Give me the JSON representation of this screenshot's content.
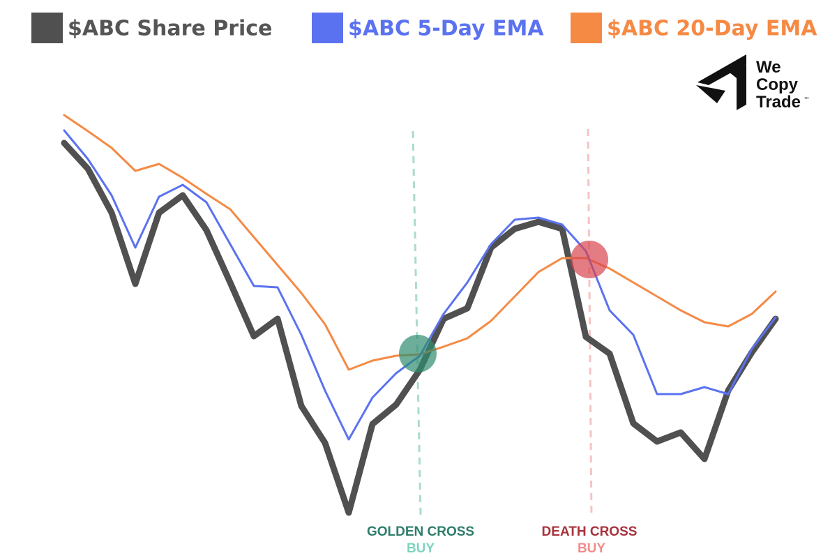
{
  "chart_data": {
    "type": "line",
    "categories": [
      null,
      null,
      null,
      null,
      null,
      null,
      null,
      null,
      null,
      null,
      null,
      null,
      null,
      null,
      null,
      null,
      null,
      null,
      null,
      null,
      null,
      null,
      null,
      null,
      null,
      null,
      null,
      null,
      null,
      null,
      null
    ],
    "series": [
      {
        "name": "$ABC Share Price",
        "color": "#505050",
        "legend_color": "#555555",
        "values": [
          595,
          558,
          495,
          393,
          495,
          520,
          470,
          395,
          318,
          343,
          218,
          165,
          65,
          192,
          220,
          270,
          343,
          358,
          445,
          472,
          482,
          472,
          317,
          293,
          193,
          167,
          180,
          142,
          240,
          295,
          343
        ]
      },
      {
        "name": "$ABC 5-Day EMA",
        "color": "#5b72f0",
        "values": [
          613,
          572,
          520,
          445,
          518,
          535,
          510,
          450,
          390,
          388,
          320,
          240,
          170,
          230,
          265,
          290,
          350,
          395,
          450,
          485,
          488,
          478,
          440,
          355,
          320,
          235,
          235,
          245,
          235,
          300,
          345
        ]
      },
      {
        "name": "$ABC 20-Day EMA",
        "color": "#f58a45",
        "values": [
          635,
          612,
          588,
          555,
          565,
          545,
          522,
          500,
          460,
          420,
          380,
          335,
          270,
          283,
          290,
          292,
          303,
          315,
          340,
          375,
          410,
          430,
          430,
          415,
          395,
          375,
          355,
          338,
          332,
          350,
          382
        ]
      }
    ],
    "annotations": [
      {
        "title": "GOLDEN CROSS",
        "subtitle": "BUY",
        "color": "#2e7d6a",
        "sub_color": "#7fd3bf"
      },
      {
        "title": "DEATH CROSS",
        "subtitle": "BUY",
        "color": "#a8323c",
        "sub_color": "#f28b8b"
      }
    ]
  },
  "logo": {
    "lines": [
      "We",
      "Copy",
      "Trade"
    ],
    "mark": "™"
  }
}
